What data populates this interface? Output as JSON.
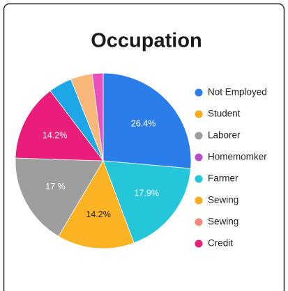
{
  "chart_data": {
    "type": "pie",
    "title": "Occupation",
    "values": [
      26.4,
      17.9,
      14.2,
      17,
      14.2,
      4.3,
      4,
      2
    ],
    "value_labels": [
      "26.4%",
      "17.9%",
      "14.2%",
      "17 %",
      "14.2%",
      null,
      null,
      null
    ],
    "colors": [
      "#2b7de9",
      "#26c6da",
      "#fbb324",
      "#9e9e9e",
      "#e91e7b",
      "#1ea7e8",
      "#f9b77a",
      "#ea4fc0"
    ],
    "label_colors": [
      "#ffffff",
      "#ffffff",
      "#222222",
      "#ffffff",
      "#ffffff",
      null,
      null,
      null
    ],
    "legend": [
      {
        "name": "Not Employed",
        "color": "#2b7de9"
      },
      {
        "name": "Student",
        "color": "#f9ab1a"
      },
      {
        "name": "Laborer",
        "color": "#9e9e9e"
      },
      {
        "name": "Homemomker",
        "color": "#b64fc8"
      },
      {
        "name": "Farmer",
        "color": "#26c6da"
      },
      {
        "name": "Sewing",
        "color": "#f9ab1a"
      },
      {
        "name": "Sewing",
        "color": "#f08a7a"
      },
      {
        "name": "Credit",
        "color": "#e91e7b"
      }
    ]
  }
}
